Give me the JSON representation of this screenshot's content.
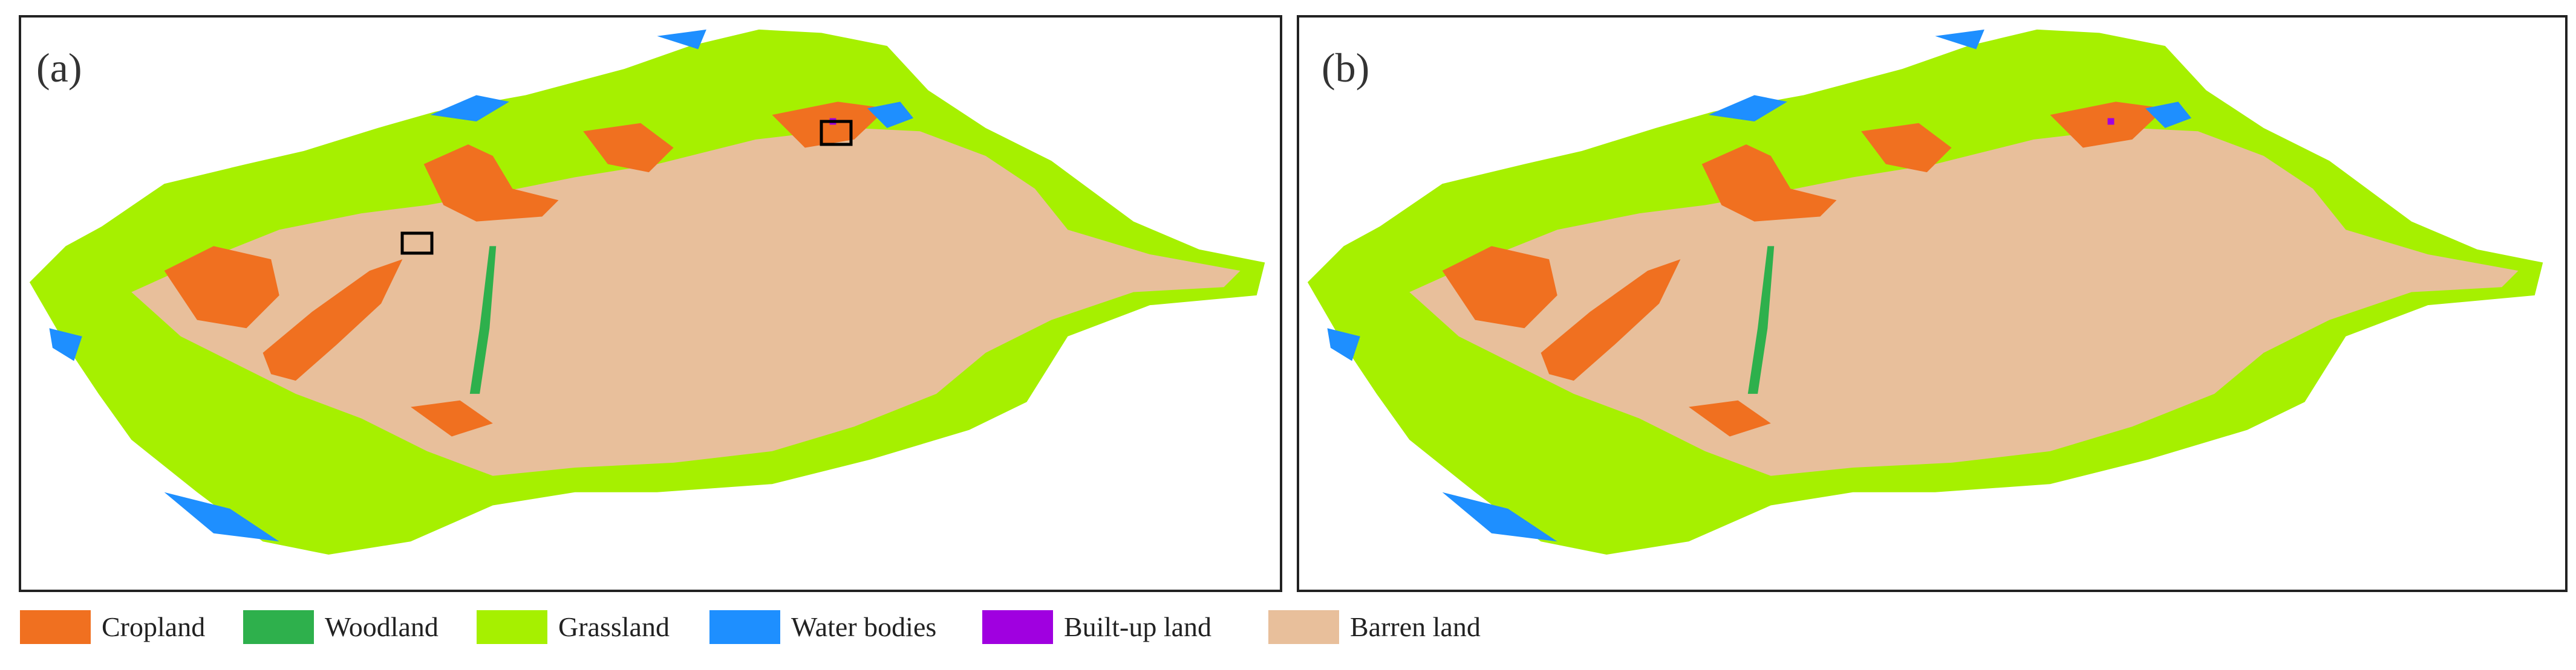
{
  "panels": [
    {
      "label": "(a)"
    },
    {
      "label": "(b)"
    }
  ],
  "legend": [
    {
      "name": "Cropland",
      "color": "#f07020"
    },
    {
      "name": "Woodland",
      "color": "#2eb04c"
    },
    {
      "name": "Grassland",
      "color": "#a6f000"
    },
    {
      "name": "Water bodies",
      "color": "#1e8fff"
    },
    {
      "name": "Built-up land",
      "color": "#a000e0"
    },
    {
      "name": "Barren land",
      "color": "#e8bf9b"
    }
  ]
}
